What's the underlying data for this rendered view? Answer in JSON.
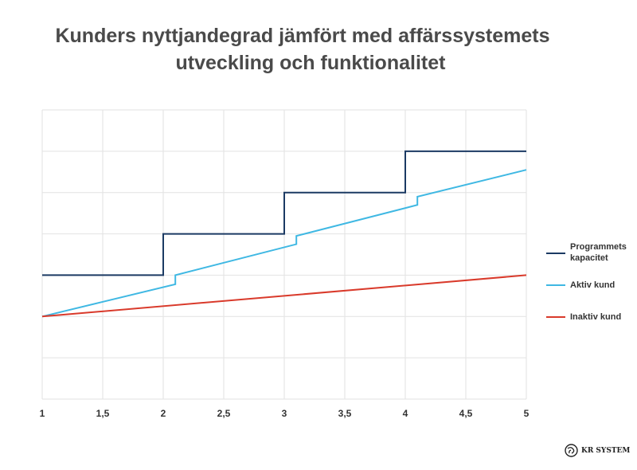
{
  "chart_data": {
    "type": "line",
    "title": "Kunders nyttjandegrad jämfört med affärssystemets utveckling och funktionalitet",
    "title_lines": [
      "Kunders nyttjandegrad jämfört med affärssystemets",
      "utveckling och funktionalitet"
    ],
    "xlabel": "",
    "ylabel": "",
    "xlim": [
      1,
      5
    ],
    "ylim": [
      0,
      7
    ],
    "x_ticks": [
      "1",
      "1,5",
      "2",
      "2,5",
      "3",
      "3,5",
      "4",
      "4,5",
      "5"
    ],
    "y_tick_labels_shown": false,
    "grid": true,
    "legend_position": "right",
    "series": [
      {
        "name": "Programmets kapacitet",
        "color": "#1b3a63",
        "points": [
          [
            1,
            3
          ],
          [
            2,
            3
          ],
          [
            2,
            4
          ],
          [
            3,
            4
          ],
          [
            3,
            5
          ],
          [
            4,
            5
          ],
          [
            4,
            6
          ],
          [
            5,
            6
          ]
        ]
      },
      {
        "name": "Aktiv kund",
        "color": "#3fb8e3",
        "points": [
          [
            1,
            2
          ],
          [
            2.1,
            2.78
          ],
          [
            2.1,
            3.0
          ],
          [
            3.1,
            3.75
          ],
          [
            3.1,
            3.95
          ],
          [
            4.1,
            4.7
          ],
          [
            4.1,
            4.9
          ],
          [
            5,
            5.55
          ]
        ]
      },
      {
        "name": "Inaktiv kund",
        "color": "#d93a2b",
        "points": [
          [
            1,
            2
          ],
          [
            5,
            3
          ]
        ]
      }
    ]
  },
  "legend": [
    {
      "label_lines": [
        "Programmets",
        "kapacitet"
      ]
    },
    {
      "label_lines": [
        "Aktiv kund"
      ]
    },
    {
      "label_lines": [
        "Inaktiv kund"
      ]
    }
  ],
  "logo": {
    "text": "KR SYSTEM"
  }
}
